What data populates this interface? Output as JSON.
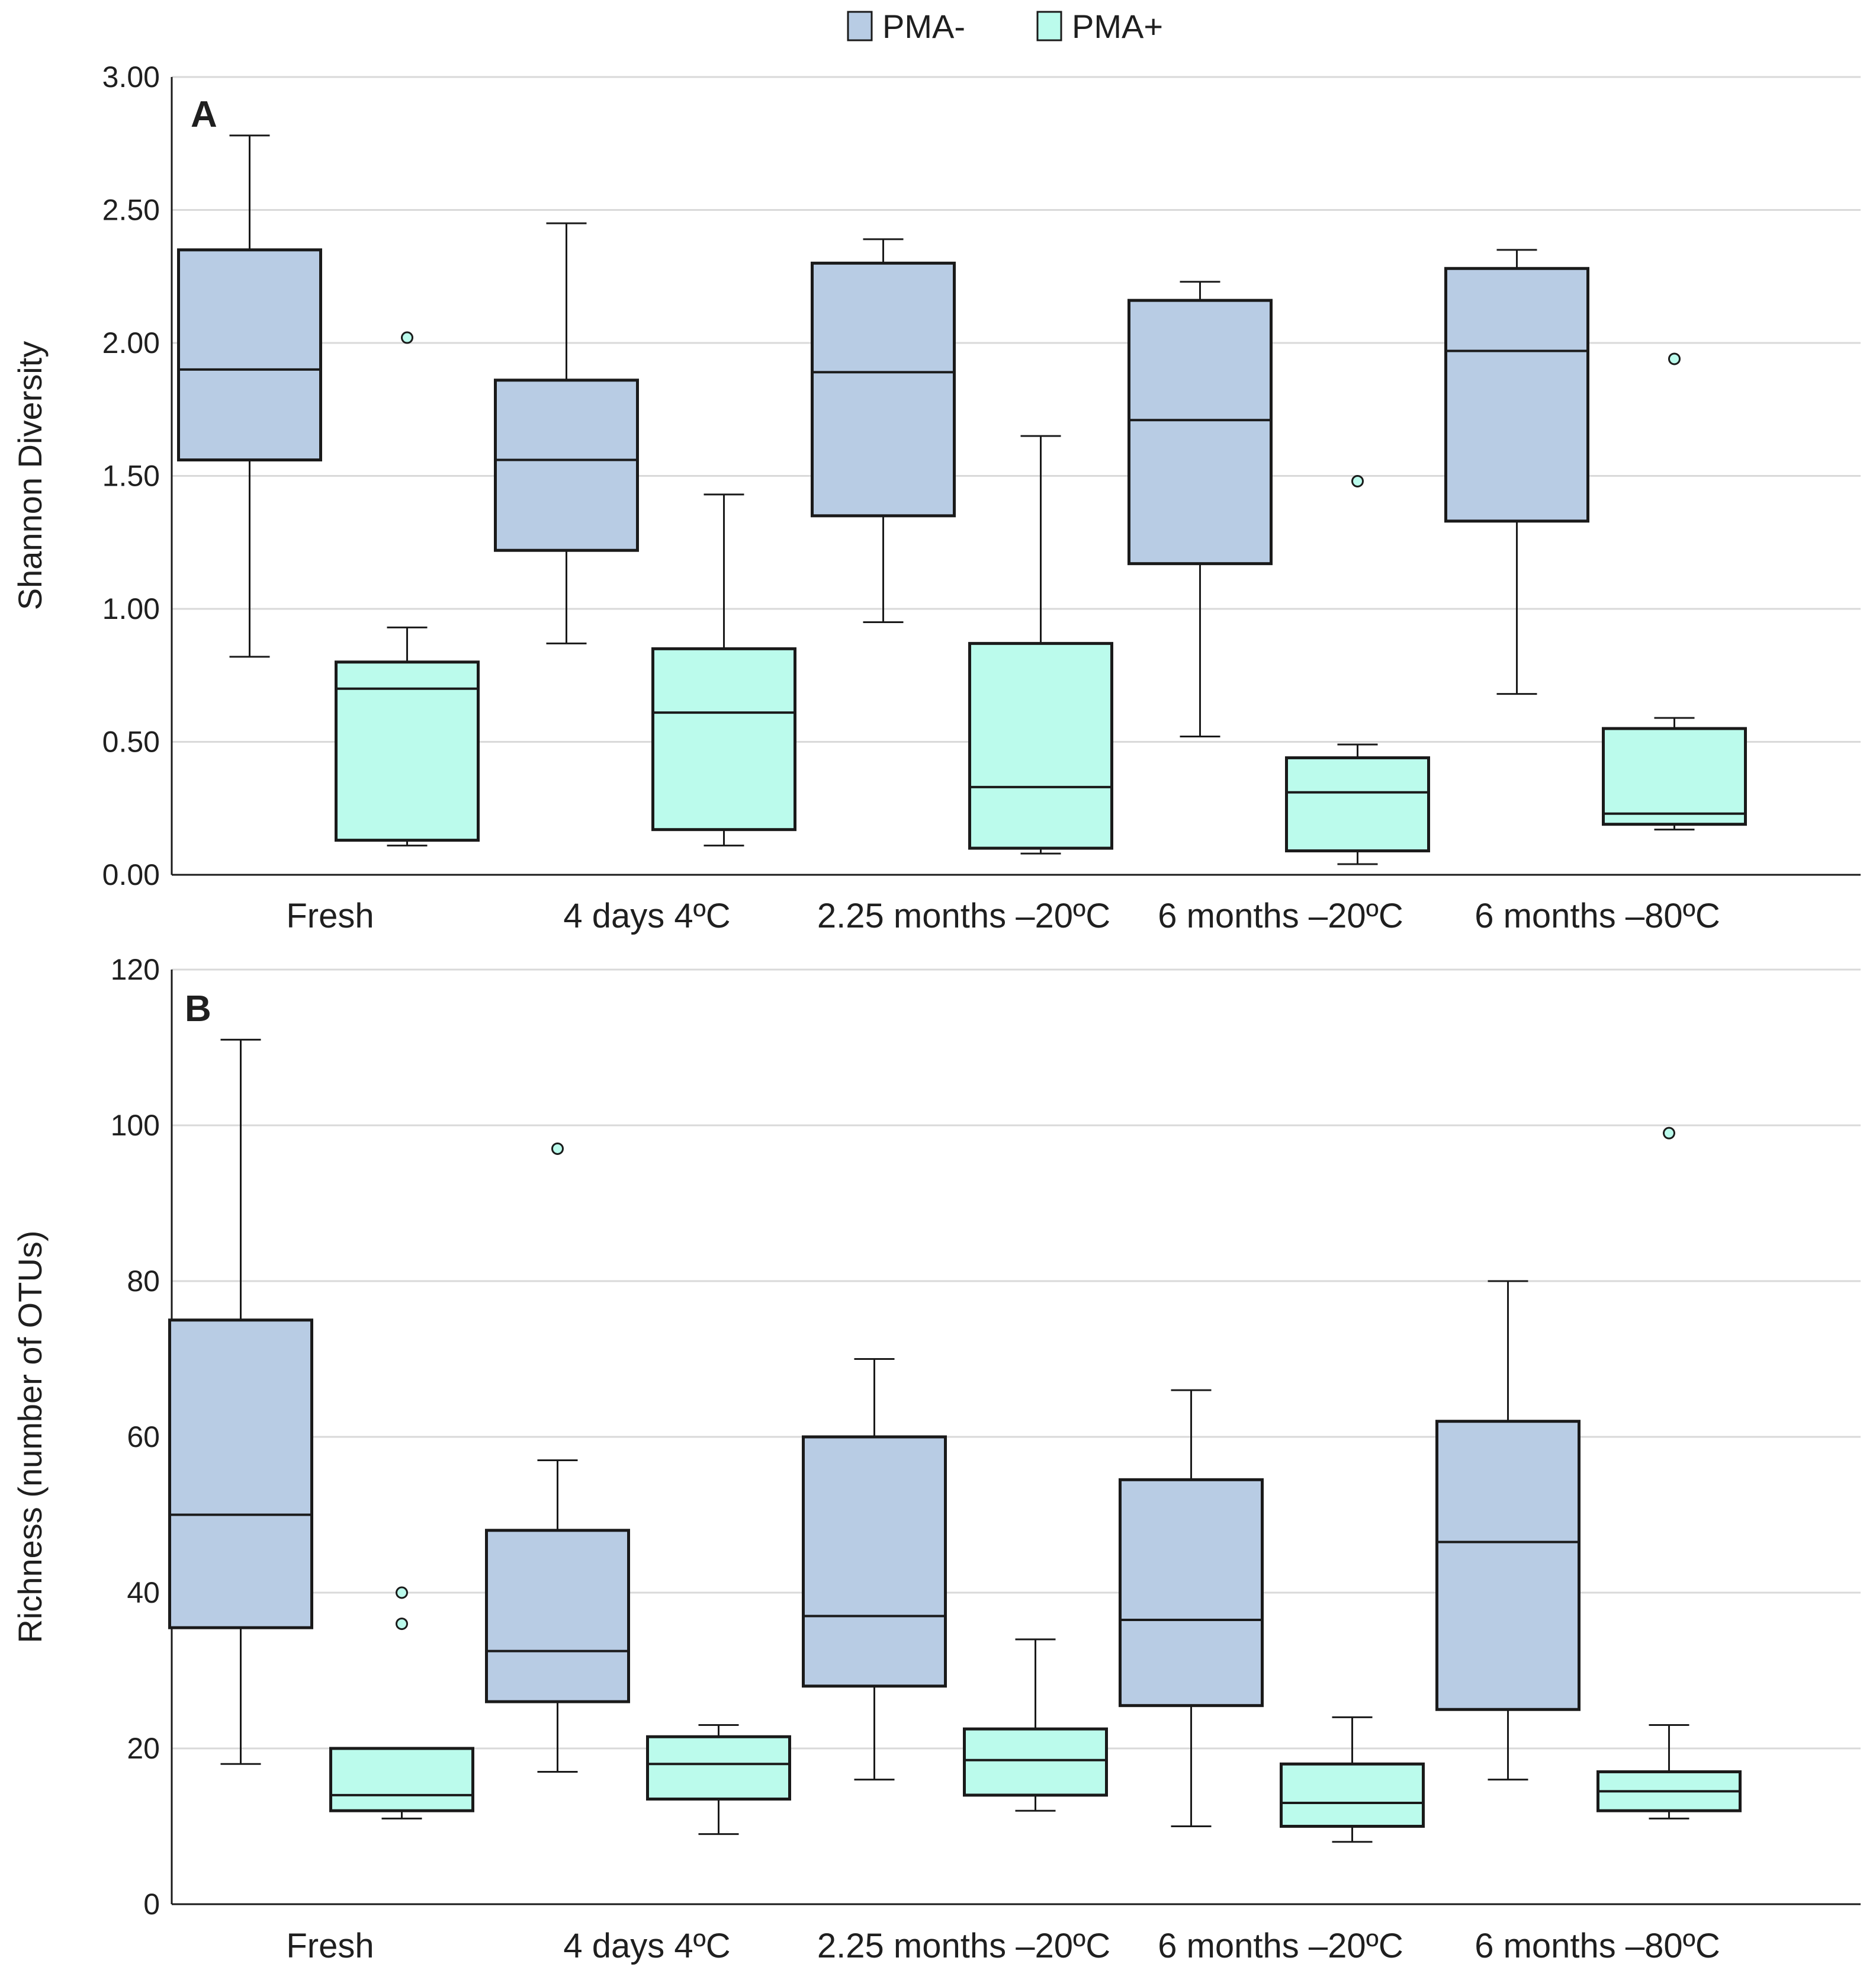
{
  "colors": {
    "pma_minus": "#b8cce4",
    "pma_plus": "#bbfbec",
    "outline": "#1a1a1a",
    "gridline": "#d9d9d9",
    "outlier_fill": "#bbfbec"
  },
  "legend": [
    {
      "key": "pma_minus",
      "label": "PMA-"
    },
    {
      "key": "pma_plus",
      "label": "PMA+"
    }
  ],
  "chart_data": [
    {
      "type": "box",
      "panel": "A",
      "ylabel": "Shannon Diversity",
      "ylim": [
        0,
        3.0
      ],
      "yticks": [
        0,
        0.5,
        1.0,
        1.5,
        2.0,
        2.5,
        3.0
      ],
      "ytick_labels": [
        "0.00",
        "0.50",
        "1.00",
        "1.50",
        "2.00",
        "2.50",
        "3.00"
      ],
      "grid": true,
      "categories": [
        "Fresh",
        "4 days 4ºC",
        "2.25 months –20ºC",
        "6 months –20ºC",
        "6 months –80ºC"
      ],
      "series": [
        {
          "name": "PMA-",
          "color_key": "pma_minus",
          "boxes": [
            {
              "min": 0.82,
              "q1": 1.56,
              "median": 1.9,
              "q3": 2.35,
              "max": 2.78,
              "outliers": []
            },
            {
              "min": 0.87,
              "q1": 1.22,
              "median": 1.56,
              "q3": 1.86,
              "max": 2.45,
              "outliers": []
            },
            {
              "min": 0.95,
              "q1": 1.35,
              "median": 1.89,
              "q3": 2.3,
              "max": 2.39,
              "outliers": []
            },
            {
              "min": 0.52,
              "q1": 1.17,
              "median": 1.71,
              "q3": 2.16,
              "max": 2.23,
              "outliers": []
            },
            {
              "min": 0.68,
              "q1": 1.33,
              "median": 1.97,
              "q3": 2.28,
              "max": 2.35,
              "outliers": []
            }
          ]
        },
        {
          "name": "PMA+",
          "color_key": "pma_plus",
          "boxes": [
            {
              "min": 0.11,
              "q1": 0.13,
              "median": 0.7,
              "q3": 0.8,
              "max": 0.93,
              "outliers": [
                2.02
              ]
            },
            {
              "min": 0.11,
              "q1": 0.17,
              "median": 0.61,
              "q3": 0.85,
              "max": 1.43,
              "outliers": []
            },
            {
              "min": 0.08,
              "q1": 0.1,
              "median": 0.33,
              "q3": 0.87,
              "max": 1.65,
              "outliers": []
            },
            {
              "min": 0.04,
              "q1": 0.09,
              "median": 0.31,
              "q3": 0.44,
              "max": 0.49,
              "outliers": [
                1.48
              ]
            },
            {
              "min": 0.17,
              "q1": 0.19,
              "median": 0.23,
              "q3": 0.55,
              "max": 0.59,
              "outliers": [
                1.94
              ]
            }
          ]
        }
      ]
    },
    {
      "type": "box",
      "panel": "B",
      "ylabel": "Richness (number of OTUs)",
      "ylim": [
        0,
        120
      ],
      "yticks": [
        0,
        20,
        40,
        60,
        80,
        100,
        120
      ],
      "ytick_labels": [
        "0",
        "20",
        "40",
        "60",
        "80",
        "100",
        "120"
      ],
      "grid": true,
      "categories": [
        "Fresh",
        "4 days 4ºC",
        "2.25 months –20ºC",
        "6 months –20ºC",
        "6 months –80ºC"
      ],
      "series": [
        {
          "name": "PMA-",
          "color_key": "pma_minus",
          "boxes": [
            {
              "min": 18,
              "q1": 35.5,
              "median": 50,
              "q3": 75,
              "max": 111,
              "outliers": []
            },
            {
              "min": 17,
              "q1": 26,
              "median": 32.5,
              "q3": 48,
              "max": 57,
              "outliers": [
                97
              ]
            },
            {
              "min": 16,
              "q1": 28,
              "median": 37,
              "q3": 60,
              "max": 70,
              "outliers": []
            },
            {
              "min": 10,
              "q1": 25.5,
              "median": 36.5,
              "q3": 54.5,
              "max": 66,
              "outliers": []
            },
            {
              "min": 16,
              "q1": 25,
              "median": 46.5,
              "q3": 62,
              "max": 80,
              "outliers": []
            }
          ]
        },
        {
          "name": "PMA+",
          "color_key": "pma_plus",
          "boxes": [
            {
              "min": 11,
              "q1": 12,
              "median": 14,
              "q3": 20,
              "max": 20,
              "outliers": [
                36,
                40
              ]
            },
            {
              "min": 9,
              "q1": 13.5,
              "median": 18,
              "q3": 21.5,
              "max": 23,
              "outliers": []
            },
            {
              "min": 12,
              "q1": 14,
              "median": 18.5,
              "q3": 22.5,
              "max": 34,
              "outliers": []
            },
            {
              "min": 8,
              "q1": 10,
              "median": 13,
              "q3": 18,
              "max": 24,
              "outliers": []
            },
            {
              "min": 11,
              "q1": 12,
              "median": 14.5,
              "q3": 17,
              "max": 23,
              "outliers": [
                99
              ]
            }
          ]
        }
      ]
    }
  ]
}
